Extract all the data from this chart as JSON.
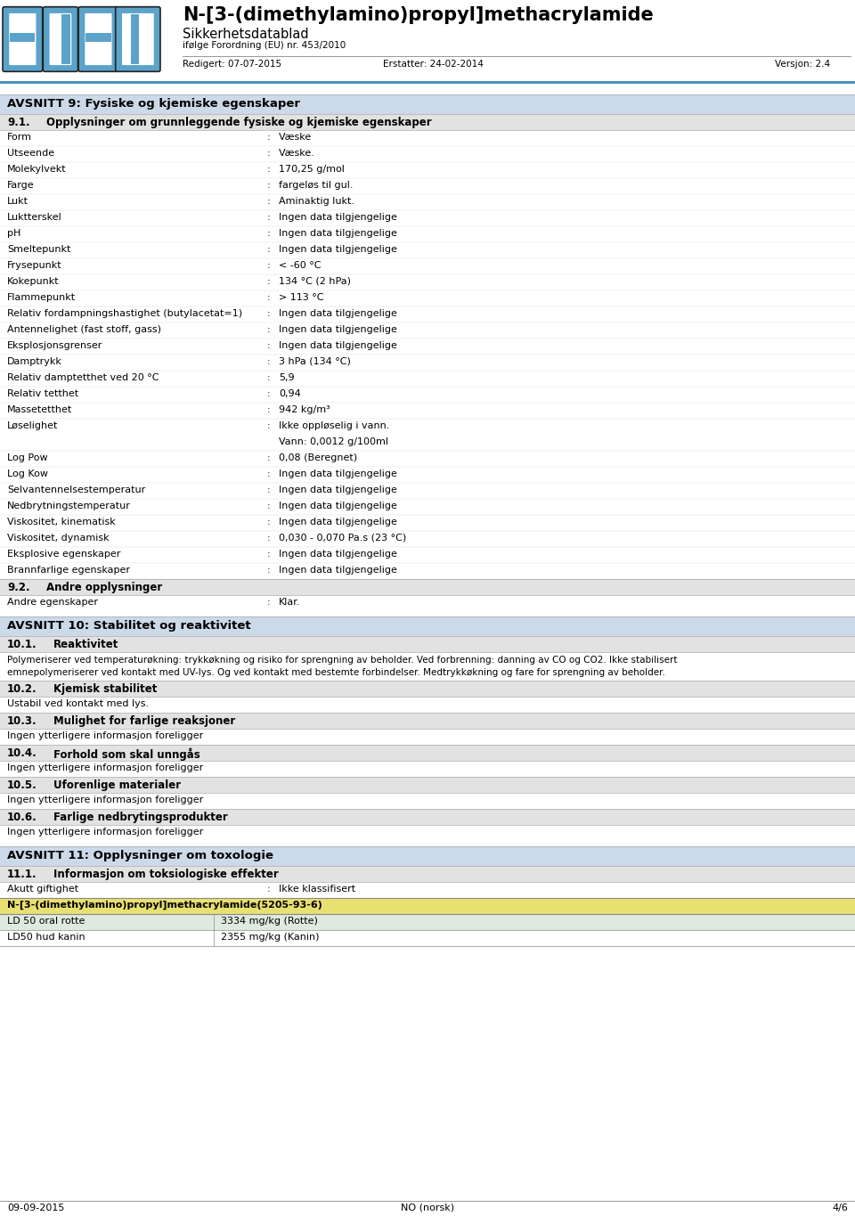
{
  "title": "N-[3-(dimethylamino)propyl]methacrylamide",
  "subtitle": "Sikkerhetsdatablad",
  "subtitle2": "ifølge Forordning (EU) nr. 453/2010",
  "header_date": "Redigert: 07-07-2015",
  "header_erstatter": "Erstatter: 24-02-2014",
  "header_versjon": "Versjon: 2.4",
  "section9_header": "AVSNITT 9: Fysiske og kjemiske egenskaper",
  "properties": [
    [
      "Form",
      "Væske"
    ],
    [
      "Utseende",
      "Væske."
    ],
    [
      "Molekylvekt",
      "170,25 g/mol"
    ],
    [
      "Farge",
      "fargeløs til gul."
    ],
    [
      "Lukt",
      "Aminaktig lukt."
    ],
    [
      "Luktterskel",
      "Ingen data tilgjengelige"
    ],
    [
      "pH",
      "Ingen data tilgjengelige"
    ],
    [
      "Smeltepunkt",
      "Ingen data tilgjengelige"
    ],
    [
      "Frysepunkt",
      "< -60 °C"
    ],
    [
      "Kokepunkt",
      "134 °C (2 hPa)"
    ],
    [
      "Flammepunkt",
      "> 113 °C"
    ],
    [
      "Relativ fordampningshastighet (butylacetat=1)",
      "Ingen data tilgjengelige"
    ],
    [
      "Antennelighet (fast stoff, gass)",
      "Ingen data tilgjengelige"
    ],
    [
      "Eksplosjonsgrenser",
      "Ingen data tilgjengelige"
    ],
    [
      "Damptrykk",
      "3 hPa (134 °C)"
    ],
    [
      "Relativ damptetthet ved 20 °C",
      "5,9"
    ],
    [
      "Relativ tetthet",
      "0,94"
    ],
    [
      "Massetetthet",
      "942 kg/m³"
    ],
    [
      "Løselighet",
      "Ikke oppløselig i vann.\nVann: 0,0012 g/100ml"
    ],
    [
      "Log Pow",
      "0,08 (Beregnet)"
    ],
    [
      "Log Kow",
      "Ingen data tilgjengelige"
    ],
    [
      "Selvantennelsestemperatur",
      "Ingen data tilgjengelige"
    ],
    [
      "Nedbrytningstemperatur",
      "Ingen data tilgjengelige"
    ],
    [
      "Viskositet, kinematisk",
      "Ingen data tilgjengelige"
    ],
    [
      "Viskositet, dynamisk",
      "0,030 - 0,070 Pa.s (23 °C)"
    ],
    [
      "Eksplosive egenskaper",
      "Ingen data tilgjengelige"
    ],
    [
      "Brannfarlige egenskaper",
      "Ingen data tilgjengelige"
    ]
  ],
  "andre_egenskaper": [
    "Andre egenskaper",
    "Klar."
  ],
  "section10_header": "AVSNITT 10: Stabilitet og reaktivitet",
  "section10_1_text": "Polymeriserer ved temperaturøkning: trykkøkning og risiko for sprengning av beholder. Ved forbrenning: danning av CO og CO2. Ikke stabilisert\nemnepolymeriserer ved kontakt med UV-lys. Og ved kontakt med bestemte forbindelser. Medtrykkøkning og fare for sprengning av beholder.",
  "section10_2_text": "Ustabil ved kontakt med lys.",
  "section10_3_text": "Ingen ytterligere informasjon foreligger",
  "section10_4_text": "Ingen ytterligere informasjon foreligger",
  "section10_5_text": "Ingen ytterligere informasjon foreligger",
  "section10_6_text": "Ingen ytterligere informasjon foreligger",
  "section11_header": "AVSNITT 11: Opplysninger om toxologie",
  "akutt_giftighet_label": "Akutt giftighet",
  "akutt_giftighet_value": "Ikke klassifisert",
  "table_header": "N-[3-(dimethylamino)propyl]methacrylamide(5205-93-6)",
  "table_rows": [
    [
      "LD 50 oral rotte",
      "3334 mg/kg (Rotte)"
    ],
    [
      "LD50 hud kanin",
      "2355 mg/kg (Kanin)"
    ]
  ],
  "footer_date": "09-09-2015",
  "footer_center": "NO (norsk)",
  "footer_page": "4/6",
  "logo_blue": "#5ba3c9",
  "logo_blue_dark": "#3a7fa8",
  "section_header_bg": "#ccd9e8",
  "subheader_bg": "#e2e2e2",
  "white": "#ffffff",
  "black": "#000000",
  "table_header_bg": "#e8e070",
  "table_row0_bg": "#deeade",
  "table_row1_bg": "#ffffff",
  "accent_blue": "#4a90c0"
}
